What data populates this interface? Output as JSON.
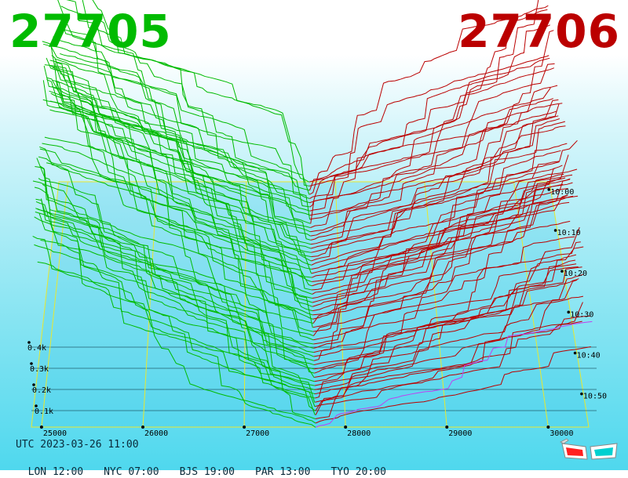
{
  "header": {
    "price_left": "27705",
    "price_right": "27706",
    "color_left": "#00bb00",
    "color_right": "#bb0000"
  },
  "footer": {
    "utc": "UTC 2023-03-26 11:00",
    "zones": [
      {
        "label": "LON 12:00"
      },
      {
        "label": "NYC 07:00"
      },
      {
        "label": "BJS 19:00"
      },
      {
        "label": "PAR 13:00"
      },
      {
        "label": "TYO 20:00"
      }
    ]
  },
  "chart_data": {
    "type": "area",
    "x_ticks": [
      "25000",
      "26000",
      "27000",
      "28000",
      "29000",
      "30000"
    ],
    "x_range": [
      24900,
      30400
    ],
    "depth_ticks": [
      "0.1k",
      "0.2k",
      "0.3k",
      "0.4k"
    ],
    "time_ticks": [
      "10:00",
      "10:10",
      "10:20",
      "10:30",
      "10:40",
      "10:50"
    ],
    "mid_price": 27705.5,
    "snapshots": 60,
    "series": [
      {
        "name": "bids",
        "color": "#00bb00"
      },
      {
        "name": "asks",
        "color": "#bb0000"
      }
    ],
    "grid": true,
    "anaglyph_glasses_icon": "3d-glasses-icon"
  }
}
